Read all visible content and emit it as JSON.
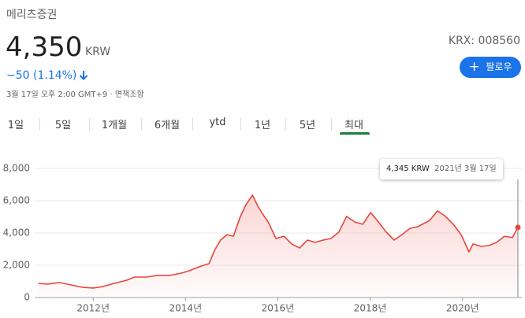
{
  "header": {
    "name": "메리츠증권",
    "price": "4,350",
    "currency": "KRW",
    "change": "−50 (1.14%)",
    "timestamp": "3월 17일 오후 2:00 GMT+9",
    "separator": "·",
    "disclaimer": "면책조항",
    "ticker": "KRX: 008560",
    "follow": "팔로우"
  },
  "tabs": [
    "1일",
    "5일",
    "1개월",
    "6개월",
    "ytd",
    "1년",
    "5년",
    "최대"
  ],
  "chart_data": {
    "type": "line",
    "color": "#e8453c",
    "grid": true,
    "x": [
      2010.81,
      2011.01,
      2011.27,
      2011.52,
      2011.78,
      2012.0,
      2012.2,
      2012.46,
      2012.72,
      2012.89,
      2013.14,
      2013.4,
      2013.66,
      2013.91,
      2014.08,
      2014.34,
      2014.51,
      2014.63,
      2014.76,
      2014.9,
      2015.04,
      2015.19,
      2015.31,
      2015.45,
      2015.55,
      2015.65,
      2015.79,
      2015.96,
      2016.13,
      2016.3,
      2016.47,
      2016.64,
      2016.81,
      2016.98,
      2017.15,
      2017.32,
      2017.49,
      2017.67,
      2017.84,
      2018.01,
      2018.18,
      2018.35,
      2018.52,
      2018.69,
      2018.86,
      2019.03,
      2019.29,
      2019.46,
      2019.63,
      2019.8,
      2019.97,
      2020.14,
      2020.23,
      2020.4,
      2020.57,
      2020.74,
      2020.91,
      2021.08,
      2021.2
    ],
    "values": [
      880,
      830,
      930,
      780,
      630,
      590,
      680,
      880,
      1070,
      1270,
      1270,
      1370,
      1370,
      1510,
      1660,
      1950,
      2100,
      2930,
      3560,
      3900,
      3800,
      5030,
      5760,
      6340,
      5760,
      5270,
      4680,
      3660,
      3800,
      3320,
      3070,
      3560,
      3420,
      3560,
      3660,
      4050,
      5030,
      4680,
      4540,
      5270,
      4680,
      4050,
      3560,
      3900,
      4290,
      4390,
      4780,
      5370,
      5030,
      4540,
      3900,
      2830,
      3320,
      3170,
      3220,
      3420,
      3800,
      3710,
      4345
    ],
    "xlim": [
      2010.75,
      2021.2
    ],
    "xticks": [
      {
        "value": 2012,
        "label": "2012년"
      },
      {
        "value": 2014,
        "label": "2014년"
      },
      {
        "value": 2016,
        "label": "2016년"
      },
      {
        "value": 2018,
        "label": "2018년"
      },
      {
        "value": 2020,
        "label": "2020년"
      }
    ],
    "ylim": [
      0,
      8000
    ],
    "yticks": [
      0,
      {
        "value": 2000,
        "label": "2,000"
      },
      {
        "value": 4000,
        "label": "4,000"
      },
      {
        "value": 6000,
        "label": "6,000"
      },
      {
        "value": 8000,
        "label": "8,000"
      }
    ],
    "tooltip": {
      "price": "4,345 KRW",
      "date": "2021년 3월 17일"
    }
  }
}
